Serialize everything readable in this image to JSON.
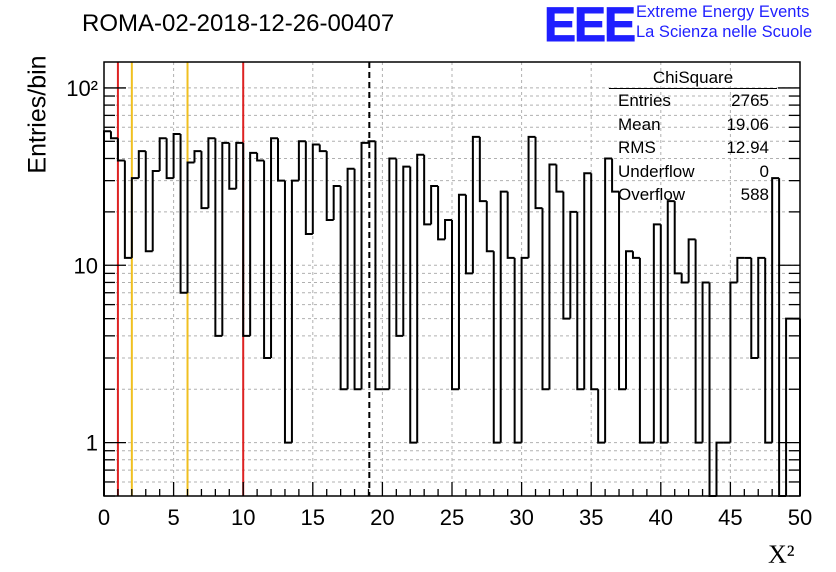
{
  "header": {
    "title": "ROMA-02-2018-12-26-00407",
    "logo_mark": "EEE",
    "logo_line1": "Extreme Energy Events",
    "logo_line2": "La Scienza nelle Scuole"
  },
  "stats_box": {
    "name": "ChiSquare",
    "rows": [
      {
        "key": "Entries",
        "value": "2765"
      },
      {
        "key": "Mean",
        "value": "19.06"
      },
      {
        "key": "RMS",
        "value": "12.94"
      },
      {
        "key": "Underflow",
        "value": "0"
      },
      {
        "key": "Overflow",
        "value": "588"
      }
    ]
  },
  "colors": {
    "red_lines": "#dd2222",
    "yellow_lines": "#f0c020",
    "logo": "#1f1fff",
    "grid": "#b0b0b0"
  },
  "chart_data": {
    "type": "histogram",
    "title": "ROMA-02-2018-12-26-00407",
    "xlabel": "Χ²",
    "ylabel": "Entries/bin",
    "xlim": [
      0,
      50
    ],
    "ylim": [
      0.5,
      140
    ],
    "ylog": true,
    "grid": true,
    "legend": "none",
    "bin_width": 0.5,
    "x_ticks": [
      "0",
      "5",
      "10",
      "15",
      "20",
      "25",
      "30",
      "35",
      "40",
      "45",
      "50"
    ],
    "y_ticks": [
      {
        "value": 1,
        "label": "1"
      },
      {
        "value": 10,
        "label": "10"
      },
      {
        "value": 100,
        "label": "10²"
      }
    ],
    "bin_values": [
      57,
      52,
      39,
      11,
      31,
      44,
      12,
      34,
      52,
      31,
      55,
      7,
      38,
      44,
      21,
      52,
      4,
      49,
      27,
      49,
      4,
      43,
      39,
      3,
      52,
      30,
      1,
      30,
      50,
      15,
      48,
      44,
      18,
      28,
      2,
      35,
      2,
      49,
      50,
      2,
      2,
      40,
      4,
      36,
      1,
      42,
      17,
      28,
      14,
      18,
      2,
      25,
      9,
      53,
      23,
      12,
      1,
      26,
      11,
      1,
      11,
      53,
      21,
      2,
      37,
      26,
      5,
      20,
      2,
      33,
      2,
      1,
      40,
      26,
      2,
      12,
      11,
      1,
      1,
      17,
      1,
      23,
      9,
      8,
      14,
      1,
      8,
      0.5,
      1,
      1,
      8,
      11,
      11,
      3,
      11,
      1,
      31,
      0.5,
      5,
      5
    ],
    "markers": [
      {
        "x": 1,
        "style": "solid",
        "color": "red"
      },
      {
        "x": 2,
        "style": "solid",
        "color": "yellow"
      },
      {
        "x": 6,
        "style": "solid",
        "color": "yellow"
      },
      {
        "x": 10,
        "style": "solid",
        "color": "red"
      },
      {
        "x": 19.06,
        "style": "dashed",
        "color": "black"
      }
    ]
  }
}
